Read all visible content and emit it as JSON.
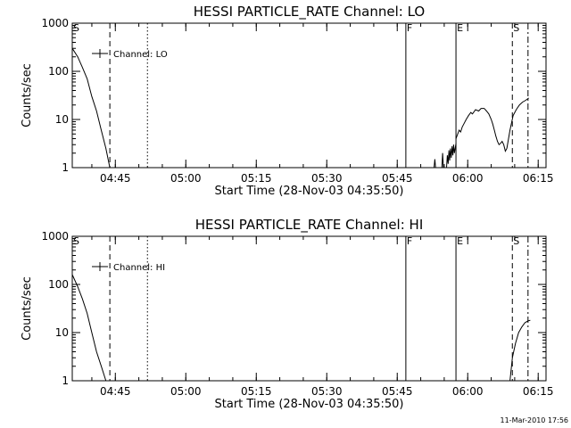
{
  "chart_data": [
    {
      "type": "line",
      "title": "HESSI PARTICLE_RATE Channel: LO",
      "xlabel": "Start Time (28-Nov-03 04:35:50)",
      "ylabel": "Counts/sec",
      "y_scale": "log",
      "ylim": [
        1,
        1000
      ],
      "xlim": [
        "04:35:50",
        "06:16:40"
      ],
      "x_ticks": [
        "04:45",
        "05:00",
        "05:15",
        "05:30",
        "05:45",
        "06:00",
        "06:15"
      ],
      "y_ticks": [
        "1",
        "10",
        "100",
        "1000"
      ],
      "legend": {
        "label": "Channel: LO",
        "position": "top-left"
      },
      "markers": [
        {
          "label": "S",
          "time": "04:35:50",
          "style": "solid"
        },
        {
          "label": "",
          "time": "04:43:50",
          "style": "dashed"
        },
        {
          "label": "",
          "time": "04:51:50",
          "style": "dotted"
        },
        {
          "label": "F",
          "time": "05:46:50",
          "style": "solid"
        },
        {
          "label": "E",
          "time": "05:57:30",
          "style": "solid"
        },
        {
          "label": "S",
          "time": "06:09:30",
          "style": "dashed"
        },
        {
          "label": "",
          "time": "06:12:50",
          "style": "dashdot"
        }
      ],
      "series": [
        {
          "name": "Channel: LO",
          "segments": [
            [
              [
                "04:35:50",
                300
              ],
              [
                "04:37:00",
                200
              ],
              [
                "04:38:00",
                120
              ],
              [
                "04:39:00",
                70
              ],
              [
                "04:40:00",
                30
              ],
              [
                "04:41:00",
                15
              ],
              [
                "04:42:00",
                6
              ],
              [
                "04:43:00",
                2.5
              ],
              [
                "04:43:50",
                1
              ]
            ],
            [
              [
                "05:52:50",
                1
              ],
              [
                "05:53:00",
                1.5
              ],
              [
                "05:53:10",
                1
              ]
            ],
            [
              [
                "05:54:30",
                1
              ],
              [
                "05:54:40",
                2
              ],
              [
                "05:54:50",
                1
              ]
            ],
            [
              [
                "05:55:30",
                1
              ],
              [
                "05:55:40",
                1.8
              ],
              [
                "05:55:50",
                1.2
              ],
              [
                "05:56:00",
                2.3
              ],
              [
                "05:56:10",
                1.4
              ],
              [
                "05:56:20",
                2.5
              ],
              [
                "05:56:30",
                1.6
              ],
              [
                "05:56:40",
                2.8
              ],
              [
                "05:56:50",
                1.8
              ],
              [
                "05:57:00",
                3
              ],
              [
                "05:57:10",
                2
              ],
              [
                "05:57:30",
                3.2
              ]
            ],
            [
              [
                "05:57:30",
                4
              ],
              [
                "05:58:10",
                6
              ],
              [
                "05:58:30",
                5.5
              ],
              [
                "05:58:50",
                7
              ],
              [
                "05:59:10",
                8
              ],
              [
                "05:59:40",
                10
              ],
              [
                "06:00:10",
                12
              ],
              [
                "06:00:40",
                14
              ],
              [
                "06:01:00",
                13
              ],
              [
                "06:01:40",
                16
              ],
              [
                "06:02:20",
                15
              ],
              [
                "06:02:50",
                17
              ],
              [
                "06:03:30",
                17
              ],
              [
                "06:04:00",
                15
              ],
              [
                "06:04:30",
                13
              ],
              [
                "06:05:00",
                10
              ],
              [
                "06:05:20",
                8
              ],
              [
                "06:05:40",
                6
              ],
              [
                "06:06:00",
                4.5
              ],
              [
                "06:06:20",
                3.5
              ],
              [
                "06:06:40",
                3
              ],
              [
                "06:07:00",
                3.2
              ],
              [
                "06:07:20",
                3.5
              ],
              [
                "06:07:40",
                3
              ],
              [
                "06:08:00",
                2.2
              ],
              [
                "06:08:20",
                2.5
              ]
            ],
            [
              [
                "06:08:20",
                2.5
              ],
              [
                "06:09:00",
                6
              ],
              [
                "06:09:40",
                12
              ],
              [
                "06:10:20",
                16
              ],
              [
                "06:11:00",
                20
              ],
              [
                "06:11:40",
                23
              ],
              [
                "06:12:20",
                25
              ],
              [
                "06:13:00",
                28
              ]
            ]
          ]
        }
      ]
    },
    {
      "type": "line",
      "title": "HESSI PARTICLE_RATE Channel: HI",
      "xlabel": "Start Time (28-Nov-03 04:35:50)",
      "ylabel": "Counts/sec",
      "y_scale": "log",
      "ylim": [
        1,
        1000
      ],
      "xlim": [
        "04:35:50",
        "06:16:40"
      ],
      "x_ticks": [
        "04:45",
        "05:00",
        "05:15",
        "05:30",
        "05:45",
        "06:00",
        "06:15"
      ],
      "y_ticks": [
        "1",
        "10",
        "100",
        "1000"
      ],
      "legend": {
        "label": "Channel: HI",
        "position": "top-left"
      },
      "markers": [
        {
          "label": "S",
          "time": "04:35:50",
          "style": "solid"
        },
        {
          "label": "",
          "time": "04:43:50",
          "style": "dashed"
        },
        {
          "label": "",
          "time": "04:51:50",
          "style": "dotted"
        },
        {
          "label": "F",
          "time": "05:46:50",
          "style": "solid"
        },
        {
          "label": "E",
          "time": "05:57:30",
          "style": "solid"
        },
        {
          "label": "S",
          "time": "06:09:30",
          "style": "dashed"
        },
        {
          "label": "",
          "time": "06:12:50",
          "style": "dashdot"
        }
      ],
      "series": [
        {
          "name": "Channel: HI",
          "segments": [
            [
              [
                "04:35:50",
                160
              ],
              [
                "04:37:00",
                90
              ],
              [
                "04:38:00",
                50
              ],
              [
                "04:39:00",
                25
              ],
              [
                "04:40:00",
                10
              ],
              [
                "04:41:00",
                4
              ],
              [
                "04:42:00",
                2
              ],
              [
                "04:43:00",
                1
              ]
            ],
            [
              [
                "06:09:00",
                1
              ],
              [
                "06:09:30",
                3
              ],
              [
                "06:10:10",
                6
              ],
              [
                "06:10:50",
                10
              ],
              [
                "06:11:30",
                13
              ],
              [
                "06:12:10",
                16
              ],
              [
                "06:12:50",
                17.5
              ],
              [
                "06:13:20",
                18
              ]
            ]
          ]
        }
      ]
    }
  ],
  "footer": {
    "timestamp": "11-Mar-2010 17:56"
  }
}
